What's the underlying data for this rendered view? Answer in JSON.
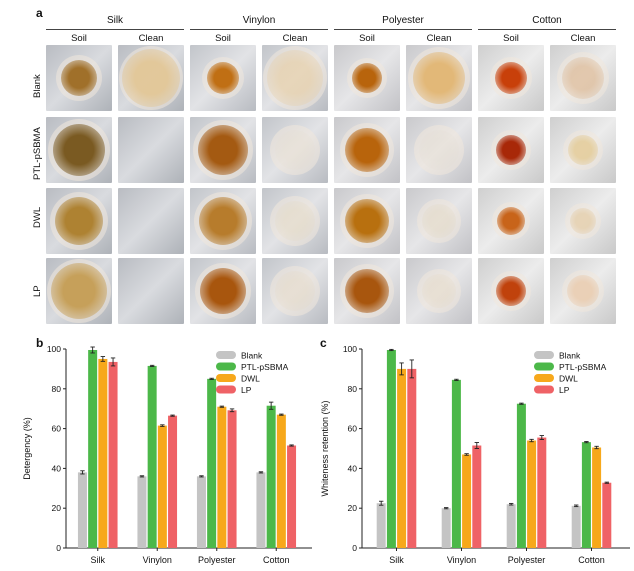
{
  "panel_a": {
    "letter": "a",
    "groups": [
      "Silk",
      "Vinylon",
      "Polyester",
      "Cotton"
    ],
    "columns": [
      "Soil",
      "Clean"
    ],
    "rows": [
      "Blank",
      "PTL-pSBMA",
      "DWL",
      "LP"
    ]
  },
  "panel_b_letter": "b",
  "panel_c_letter": "c",
  "colors": {
    "Blank": "#c4c4c4",
    "PTL-pSBMA": "#4cb849",
    "DWL": "#f7a81b",
    "LP": "#ef6266"
  },
  "chart_data": [
    {
      "type": "bar",
      "categories": [
        "Silk",
        "Vinylon",
        "Polyester",
        "Cotton"
      ],
      "ylabel": "Detergency (%)",
      "ylim": [
        0,
        100
      ],
      "yticks": [
        0,
        20,
        40,
        60,
        80,
        100
      ],
      "legend": "top-right",
      "series": [
        {
          "name": "Blank",
          "values": [
            38,
            36,
            36,
            38
          ],
          "errors": [
            0.8,
            0.3,
            0.3,
            0.3
          ]
        },
        {
          "name": "PTL-pSBMA",
          "values": [
            99.5,
            91.5,
            85,
            71.5
          ],
          "errors": [
            1.5,
            0.3,
            0.3,
            1.8
          ]
        },
        {
          "name": "DWL",
          "values": [
            95,
            61.5,
            71,
            67
          ],
          "errors": [
            1.2,
            0.4,
            0.3,
            0.3
          ]
        },
        {
          "name": "LP",
          "values": [
            93.5,
            66.5,
            69.2,
            51.5
          ],
          "errors": [
            2.0,
            0.3,
            0.7,
            0.3
          ]
        }
      ]
    },
    {
      "type": "bar",
      "categories": [
        "Silk",
        "Vinylon",
        "Polyester",
        "Cotton"
      ],
      "ylabel": "Whiteness retention (%)",
      "ylim": [
        0,
        100
      ],
      "yticks": [
        0,
        20,
        40,
        60,
        80,
        100
      ],
      "legend": "top-right",
      "series": [
        {
          "name": "Blank",
          "values": [
            22.5,
            20,
            22,
            21.2
          ],
          "errors": [
            1.0,
            0.3,
            0.4,
            0.4
          ]
        },
        {
          "name": "PTL-pSBMA",
          "values": [
            99.5,
            84.5,
            72.5,
            53.2
          ],
          "errors": [
            0.3,
            0.3,
            0.3,
            0.3
          ]
        },
        {
          "name": "DWL",
          "values": [
            90,
            47,
            54,
            50.5
          ],
          "errors": [
            3.0,
            0.4,
            0.6,
            0.6
          ]
        },
        {
          "name": "LP",
          "values": [
            90,
            51.5,
            55.5,
            32.8
          ],
          "errors": [
            4.5,
            1.5,
            1.0,
            0.3
          ]
        }
      ]
    }
  ]
}
